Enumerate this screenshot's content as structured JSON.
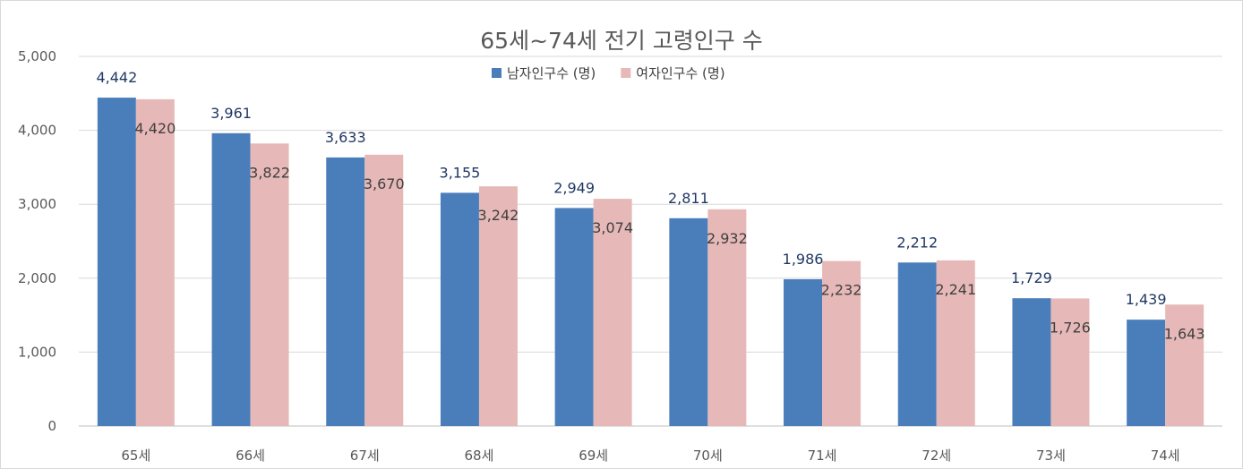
{
  "chart_data": {
    "type": "bar",
    "title": "65세~74세 전기 고령인구 수",
    "categories": [
      "65세",
      "66세",
      "67세",
      "68세",
      "69세",
      "70세",
      "71세",
      "72세",
      "73세",
      "74세"
    ],
    "series": [
      {
        "name": "남자인구수 (명)",
        "color": "#4a7ebb",
        "values": [
          4442,
          3961,
          3633,
          3155,
          2949,
          2811,
          1986,
          2212,
          1729,
          1439
        ],
        "labels": [
          "4,442",
          "3,961",
          "3,633",
          "3,155",
          "2,949",
          "2,811",
          "1,986",
          "2,212",
          "1,729",
          "1,439"
        ]
      },
      {
        "name": "여자인구수 (명)",
        "color": "#e6b9b8",
        "values": [
          4420,
          3822,
          3670,
          3242,
          3074,
          2932,
          2232,
          2241,
          1726,
          1643
        ],
        "labels": [
          "4,420",
          "3,822",
          "3,670",
          "3,242",
          "3,074",
          "2,932",
          "2,232",
          "2,241",
          "1,726",
          "1,643"
        ]
      }
    ],
    "yticks": [
      "0",
      "1,000",
      "2,000",
      "3,000",
      "4,000",
      "5,000"
    ],
    "ylim": [
      0,
      5000
    ],
    "grid": true,
    "legend": "top-center"
  }
}
